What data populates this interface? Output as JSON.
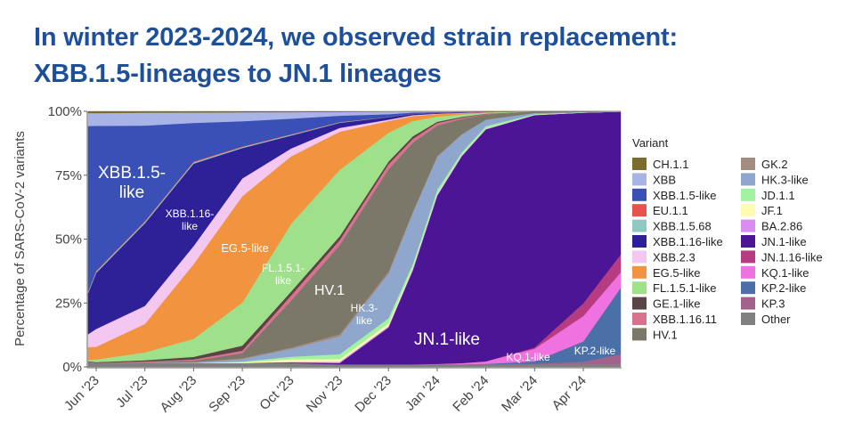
{
  "title": {
    "line1": "In winter 2023-2024, we observed strain replacement:",
    "line2": "XBB.1.5-lineages to JN.1 lineages"
  },
  "chart_data": {
    "type": "area",
    "stacked": true,
    "normalized": true,
    "title": "In winter 2023-2024, we observed strain replacement: XBB.1.5-lineages to JN.1 lineages",
    "xlabel": "",
    "ylabel": "Percentage of SARS-CoV-2 variants",
    "ylim": [
      0,
      100
    ],
    "yticks": [
      "0%",
      "25%",
      "50%",
      "75%",
      "100%"
    ],
    "xticks": [
      "Jun '23",
      "Jul '23",
      "Aug '23",
      "Sep '23",
      "Oct '23",
      "Nov '23",
      "Dec '23",
      "Jan '24",
      "Feb '24",
      "Mar '24",
      "Apr '24"
    ],
    "x_months_since_jun_2023": [
      -0.17,
      0,
      1,
      2,
      3,
      4,
      5,
      6,
      6.5,
      7,
      7.5,
      8,
      9,
      10,
      10.8
    ],
    "legend_title": "Variant",
    "legend_position": "right",
    "series": [
      {
        "name": "CH.1.1",
        "color": "#7b6b2c",
        "values": [
          0.7,
          0.7,
          0.5,
          0.5,
          0.4,
          0.3,
          0.2,
          0.1,
          0,
          0,
          0,
          0,
          0,
          0,
          0
        ]
      },
      {
        "name": "XBB",
        "color": "#a9b4e6",
        "values": [
          5,
          5,
          5,
          4,
          3.5,
          2.5,
          1.5,
          1,
          0.5,
          0.3,
          0.2,
          0.1,
          0,
          0,
          0
        ]
      },
      {
        "name": "XBB.1.5-like",
        "color": "#3b50b6",
        "values": [
          64,
          57,
          37,
          15,
          10,
          6,
          2.5,
          1,
          0.5,
          0.3,
          0.2,
          0.1,
          0,
          0,
          0
        ]
      },
      {
        "name": "EU.1.1",
        "color": "#e8524c",
        "values": [
          0.3,
          0.3,
          0.3,
          0.3,
          0.2,
          0.2,
          0.1,
          0,
          0,
          0,
          0,
          0,
          0,
          0,
          0
        ]
      },
      {
        "name": "XBB.1.5.68",
        "color": "#8fcac1",
        "values": [
          0.5,
          0.5,
          0.5,
          0.5,
          0.4,
          0.3,
          0.2,
          0.1,
          0,
          0,
          0,
          0,
          0,
          0,
          0
        ]
      },
      {
        "name": "XBB.1.16-like",
        "color": "#2e2198",
        "values": [
          16,
          22,
          32,
          32,
          12,
          5,
          2,
          1,
          0.5,
          0.3,
          0.2,
          0.1,
          0,
          0,
          0
        ]
      },
      {
        "name": "XBB.2.3",
        "color": "#f3c7ef",
        "values": [
          5,
          7,
          7,
          7,
          7,
          3,
          1.5,
          0.5,
          0.3,
          0.2,
          0.1,
          0,
          0,
          0,
          0
        ]
      },
      {
        "name": "EG.5-like",
        "color": "#f2943f",
        "values": [
          5,
          5,
          11,
          29,
          42,
          26,
          15,
          4.5,
          2,
          1,
          0.5,
          0.2,
          0,
          0,
          0
        ]
      },
      {
        "name": "FL.1.5.1-like",
        "color": "#9fe08b",
        "values": [
          0.5,
          1,
          3,
          7,
          17,
          26,
          26,
          11,
          6,
          2,
          1,
          0.4,
          0.1,
          0,
          0
        ]
      },
      {
        "name": "GE.1-like",
        "color": "#5a4545",
        "values": [
          0.2,
          0.3,
          0.5,
          1,
          2,
          1.5,
          1.5,
          1,
          1,
          0.5,
          0.3,
          0.1,
          0,
          0,
          0
        ]
      },
      {
        "name": "XBB.1.16.11",
        "color": "#d9728f",
        "values": [
          0,
          0.1,
          0.3,
          0.5,
          1,
          2,
          2,
          2,
          1.5,
          1,
          0.5,
          0.2,
          0,
          0,
          0
        ]
      },
      {
        "name": "HV.1",
        "color": "#7b7869",
        "values": [
          0,
          0,
          0.2,
          0.5,
          2,
          18,
          35,
          39,
          27,
          12,
          6,
          2,
          0.5,
          0.2,
          0
        ]
      },
      {
        "name": "GK.2",
        "color": "#a48c80",
        "values": [
          0,
          0,
          0,
          0.1,
          0.3,
          0.5,
          0.8,
          0.8,
          0.5,
          0.3,
          0.2,
          0.1,
          0,
          0,
          0
        ]
      },
      {
        "name": "HK.3-like",
        "color": "#8fa7cc",
        "values": [
          0,
          0,
          0.1,
          0.3,
          1,
          3,
          7,
          17,
          20,
          13,
          7,
          2.5,
          0.5,
          0.2,
          0.1
        ]
      },
      {
        "name": "JD.1.1",
        "color": "#a2f2a2",
        "values": [
          0,
          0,
          0,
          0,
          0.3,
          1,
          2,
          2,
          1.5,
          1.5,
          1,
          1,
          0.3,
          0.1,
          0
        ]
      },
      {
        "name": "JF.1",
        "color": "#fffcb2",
        "values": [
          0,
          0,
          0,
          0,
          0.3,
          1,
          1,
          1,
          0.5,
          0.3,
          0.2,
          0.1,
          0,
          0,
          0
        ]
      },
      {
        "name": "BA.2.86",
        "color": "#d98cf2",
        "values": [
          0,
          0,
          0,
          0,
          0,
          0.2,
          0.5,
          0.5,
          0.5,
          0.5,
          0.3,
          0.2,
          0.1,
          0,
          0
        ]
      },
      {
        "name": "JN.1-like",
        "color": "#4b1596",
        "values": [
          0,
          0,
          0,
          0,
          0,
          0.2,
          0.5,
          14,
          37,
          66,
          81,
          91,
          92,
          75,
          56
        ]
      },
      {
        "name": "JN.1.16-like",
        "color": "#b73b80",
        "values": [
          0,
          0,
          0,
          0,
          0,
          0,
          0,
          0,
          0,
          0,
          0,
          0,
          0.5,
          5,
          7
        ]
      },
      {
        "name": "KQ.1-like",
        "color": "#ef72e0",
        "values": [
          0,
          0,
          0,
          0,
          0,
          0,
          0,
          0,
          0,
          0.2,
          0.5,
          1,
          5,
          10,
          6
        ]
      },
      {
        "name": "KP.2-like",
        "color": "#4b70a8",
        "values": [
          0,
          0,
          0,
          0,
          0,
          0,
          0,
          0,
          0,
          0,
          0,
          0.2,
          1,
          8,
          26
        ]
      },
      {
        "name": "KP.3",
        "color": "#a2628b",
        "values": [
          0,
          0,
          0,
          0,
          0,
          0,
          0,
          0,
          0,
          0,
          0,
          0,
          0.2,
          1,
          4
        ]
      },
      {
        "name": "Other",
        "color": "#808080",
        "values": [
          2,
          1.5,
          1.5,
          1.5,
          1.5,
          1.5,
          1,
          1,
          1,
          1,
          1,
          1,
          1,
          1,
          1
        ]
      }
    ],
    "annotations": [
      {
        "text": "XBB.1.5-",
        "text2": "like"
      },
      {
        "text": "XBB.1.16-",
        "text2": "like"
      },
      {
        "text": "EG.5-like"
      },
      {
        "text": "FL.1.5.1-",
        "text2": "like"
      },
      {
        "text": "HV.1"
      },
      {
        "text": "HK.3-",
        "text2": "like"
      },
      {
        "text": "JN.1-like"
      },
      {
        "text": "KQ.1-like"
      },
      {
        "text": "KP.2-like"
      }
    ]
  }
}
